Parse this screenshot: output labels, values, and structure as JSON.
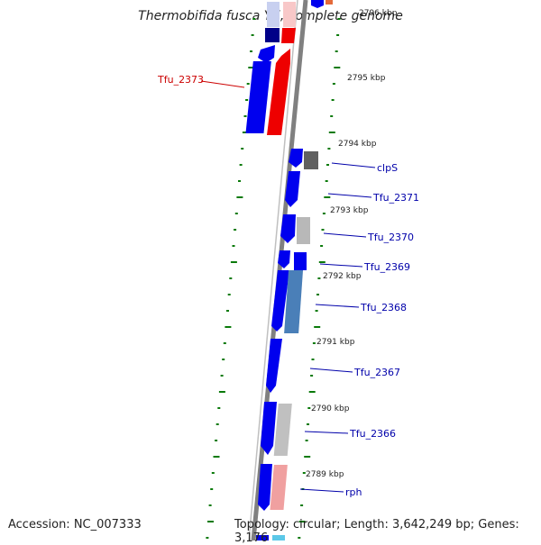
{
  "title": "Thermobifida fusca YX, complete genome",
  "footer": {
    "accession": "Accession: NC_007333",
    "topology": "Topology: circular; Length: 3,642,249 bp; Genes: 3,176"
  },
  "colors": {
    "backbone": "#808080",
    "tick": "#0a7a0a",
    "gene_blue": "#0000ee",
    "gene_red": "#ee0000",
    "label_blue": "#0000aa",
    "label_red": "#cc0000"
  },
  "kbp_labels": [
    "2796 kbp",
    "2795 kbp",
    "2794 kbp",
    "2793 kbp",
    "2792 kbp",
    "2791 kbp",
    "2790 kbp",
    "2789 kbp"
  ],
  "gene_labels": [
    {
      "text": "Tfu_2373",
      "color": "red"
    },
    {
      "text": "clpS",
      "color": "blue"
    },
    {
      "text": "Tfu_2371",
      "color": "blue"
    },
    {
      "text": "Tfu_2370",
      "color": "blue"
    },
    {
      "text": "Tfu_2369",
      "color": "blue"
    },
    {
      "text": "Tfu_2368",
      "color": "blue"
    },
    {
      "text": "Tfu_2367",
      "color": "blue"
    },
    {
      "text": "Tfu_2366",
      "color": "blue"
    },
    {
      "text": "rph",
      "color": "blue"
    }
  ]
}
